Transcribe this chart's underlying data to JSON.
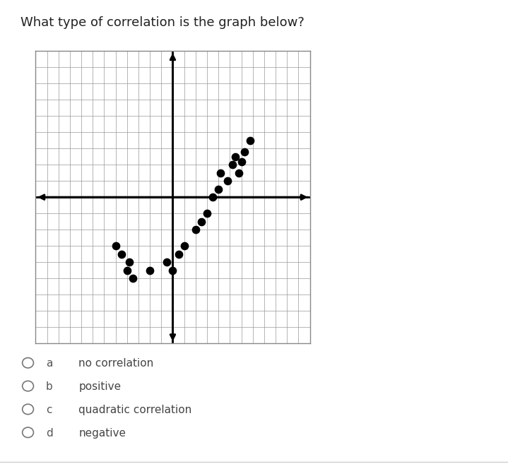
{
  "title": "What type of correlation is the graph below?",
  "title_fontsize": 13,
  "title_color": "#222222",
  "background_color": "#ffffff",
  "plot_bg_color": "#ffffff",
  "grid_color": "#999999",
  "axis_color": "#000000",
  "dot_color": "#000000",
  "dot_size": 55,
  "scatter_x": [
    -5,
    -4.5,
    -4,
    -3.8,
    -3.5,
    -2,
    -0.5,
    0,
    0.5,
    1,
    2,
    2.5,
    3,
    3.5,
    4,
    4.2,
    4.8,
    5.2,
    5.5,
    5.8,
    6.0,
    6.3,
    6.8
  ],
  "scatter_y": [
    -3,
    -3.5,
    -4.5,
    -4.0,
    -5,
    -4.5,
    -4,
    -4.5,
    -3.5,
    -3,
    -2,
    -1.5,
    -1,
    0,
    0.5,
    1.5,
    1,
    2,
    2.5,
    1.5,
    2.2,
    2.8,
    3.5
  ],
  "xlim": [
    -12,
    12
  ],
  "ylim": [
    -9,
    9
  ],
  "options": [
    {
      "letter": "a",
      "text": "no correlation"
    },
    {
      "letter": "b",
      "text": "positive"
    },
    {
      "letter": "c",
      "text": "quadratic correlation"
    },
    {
      "letter": "d",
      "text": "negative"
    }
  ],
  "option_fontsize": 11,
  "option_letter_color": "#555555",
  "option_text_color": "#444444",
  "separator_color": "#cccccc",
  "border_color": "#888888",
  "arrow_mutation_scale": 12,
  "axis_lw": 2.0,
  "grid_lw": 0.5
}
